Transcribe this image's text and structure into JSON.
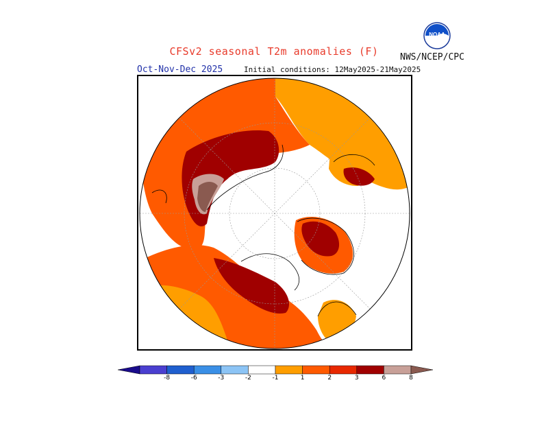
{
  "header": {
    "title": "CFSv2 seasonal T2m anomalies (F)",
    "period": "Oct-Nov-Dec 2025",
    "initial_conditions": "Initial conditions: 12May2025-21May2025",
    "agency": "NWS/NCEP/CPC",
    "logo_text": "NOAA"
  },
  "colors": {
    "title": "#e83a2a",
    "period": "#2030a8",
    "ocean_land_neutral": "#ffffff"
  },
  "colorbar": {
    "labels": [
      "-8",
      "-6",
      "-3",
      "-2",
      "-1",
      "1",
      "2",
      "3",
      "6",
      "8"
    ],
    "bins": [
      {
        "color": "#1a0b8c",
        "range": "< -8"
      },
      {
        "color": "#4a3fd0",
        "range": "-8 to -6"
      },
      {
        "color": "#1f5fcf",
        "range": "-6 to -3"
      },
      {
        "color": "#3a8fe6",
        "range": "-3 to -2"
      },
      {
        "color": "#8cc4f5",
        "range": "-2 to -1"
      },
      {
        "color": "#ffffff",
        "range": "-1 to 1"
      },
      {
        "color": "#ff9e00",
        "range": "1 to 2"
      },
      {
        "color": "#ff5a00",
        "range": "2 to 3"
      },
      {
        "color": "#e82800",
        "range": "3 to 6"
      },
      {
        "color": "#a00000",
        "range": "6 to 8"
      },
      {
        "color": "#c8a098",
        "range": "8+"
      },
      {
        "color": "#8a5a50",
        "range": "> 8"
      }
    ]
  }
}
